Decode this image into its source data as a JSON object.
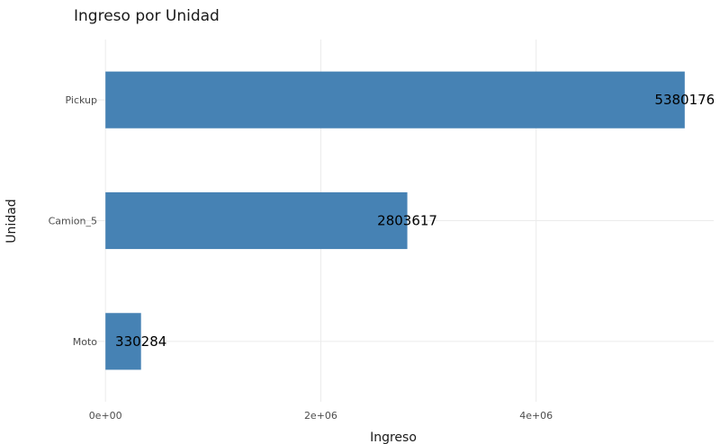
{
  "chart_data": {
    "type": "bar",
    "orientation": "horizontal",
    "title": "Ingreso por Unidad",
    "xlabel": "Ingreso",
    "ylabel": "Unidad",
    "categories": [
      "Moto",
      "Camion_5",
      "Pickup"
    ],
    "values": [
      330284,
      2803617,
      5380176
    ],
    "data_labels": [
      "330284",
      "2803617",
      "5380176"
    ],
    "x_ticks": [
      0,
      2000000,
      4000000
    ],
    "x_tick_labels": [
      "0e+00",
      "2e+06",
      "4e+06"
    ],
    "xlim": [
      -269009,
      5649185
    ],
    "grid": true,
    "legend": "none",
    "bar_color": "#4682B4"
  }
}
